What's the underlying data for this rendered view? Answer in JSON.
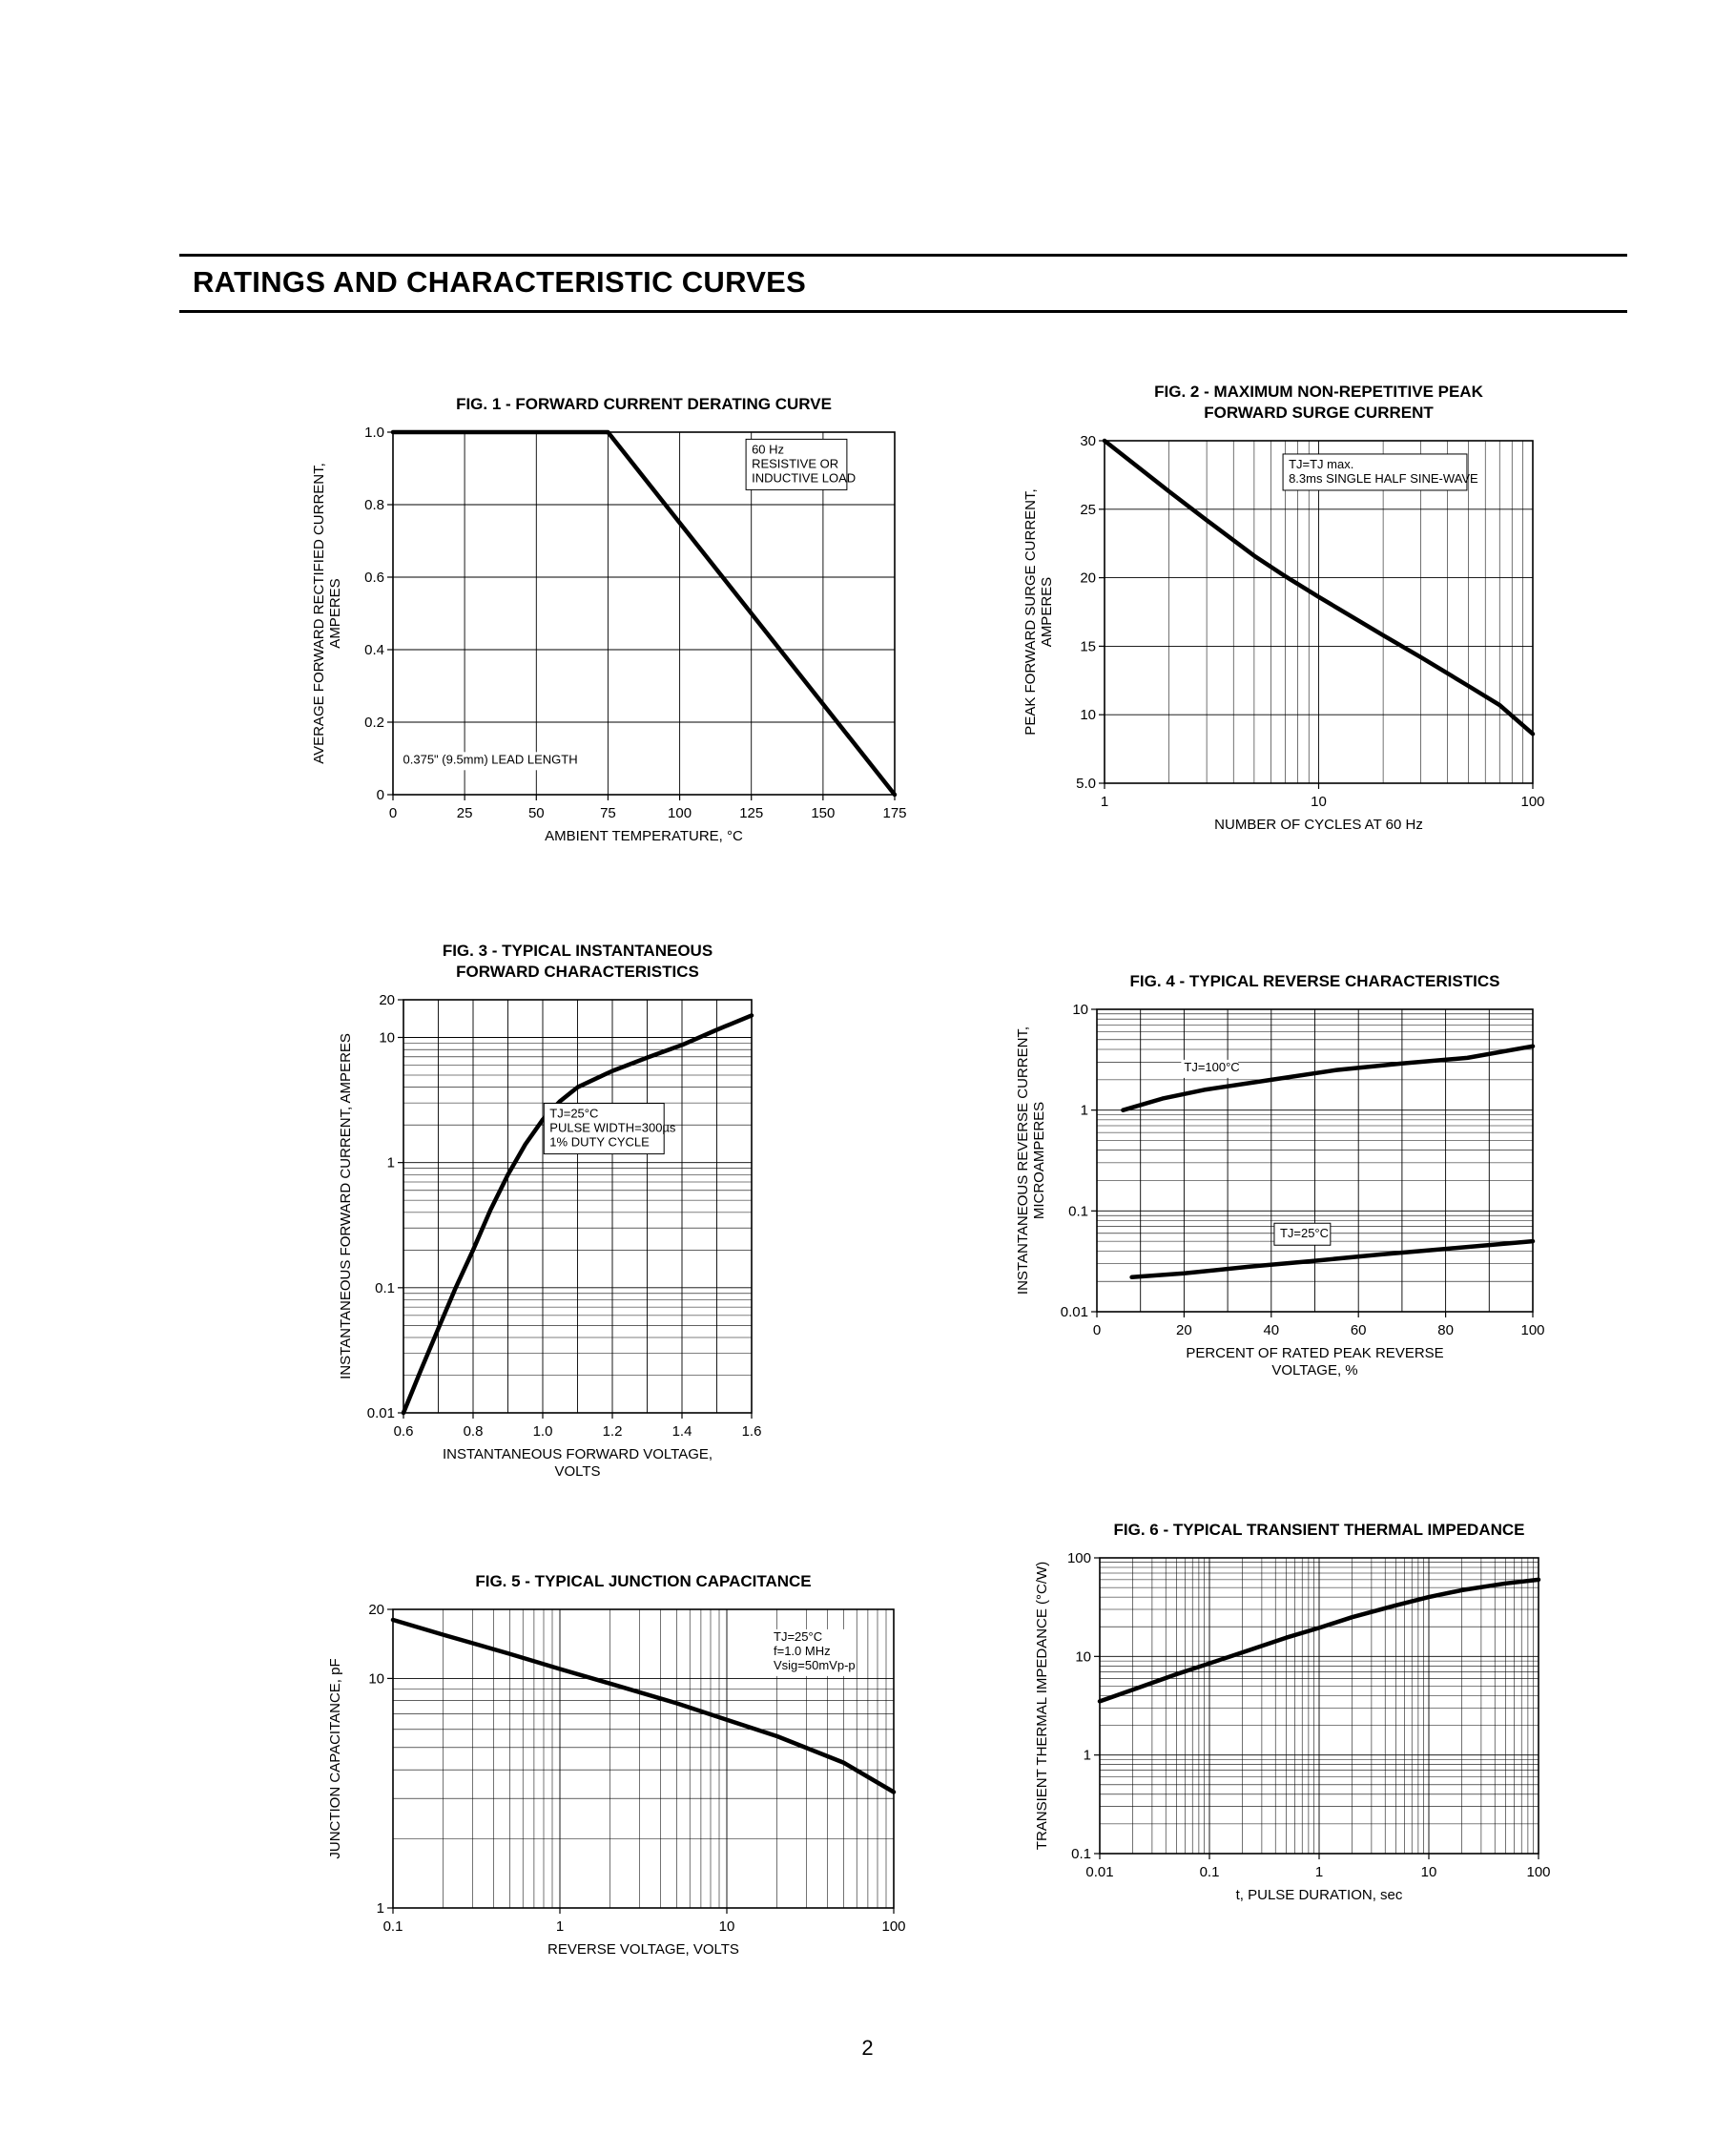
{
  "page": {
    "section_title": "RATINGS AND CHARACTERISTIC CURVES",
    "page_number": "2"
  },
  "chart_data": [
    {
      "id": "fig1",
      "type": "line",
      "title": "FIG. 1 - FORWARD CURRENT DERATING CURVE",
      "x": {
        "type": "linear",
        "min": 0,
        "max": 175,
        "step": 25,
        "ticks": [
          {
            "v": 0,
            "t": "0"
          },
          {
            "v": 25,
            "t": "25"
          },
          {
            "v": 50,
            "t": "50"
          },
          {
            "v": 75,
            "t": "75"
          },
          {
            "v": 100,
            "t": "100"
          },
          {
            "v": 125,
            "t": "125"
          },
          {
            "v": 150,
            "t": "150"
          },
          {
            "v": 175,
            "t": "175"
          }
        ],
        "label_lines": [
          "AMBIENT TEMPERATURE, °C"
        ]
      },
      "y": {
        "type": "linear",
        "min": 0,
        "max": 1.0,
        "step": 0.2,
        "ticks": [
          {
            "v": 0,
            "t": "0"
          },
          {
            "v": 0.2,
            "t": "0.2"
          },
          {
            "v": 0.4,
            "t": "0.4"
          },
          {
            "v": 0.6,
            "t": "0.6"
          },
          {
            "v": 0.8,
            "t": "0.8"
          },
          {
            "v": 1.0,
            "t": "1.0"
          }
        ],
        "label_lines": [
          "AVERAGE FORWARD RECTIFIED CURRENT,",
          "AMPERES"
        ]
      },
      "series": [
        {
          "name": "derating-curve",
          "points": [
            [
              0,
              1.0
            ],
            [
              75,
              1.0
            ],
            [
              175,
              0
            ]
          ]
        }
      ],
      "annotations": [
        {
          "lines": [
            "60 Hz",
            "RESISTIVE OR",
            "INDUCTIVE LOAD"
          ],
          "x": 0.715,
          "y": 0.03,
          "boxed": true
        },
        {
          "lines": [
            "0.375\" (9.5mm) LEAD LENGTH"
          ],
          "x": 0.02,
          "y": 0.885,
          "bg": true
        }
      ]
    },
    {
      "id": "fig2",
      "type": "line",
      "title": "FIG. 2 - MAXIMUM NON-REPETITIVE PEAK\nFORWARD SURGE CURRENT",
      "x": {
        "type": "log",
        "min": 1,
        "max": 100,
        "ticks": [
          {
            "v": 1,
            "t": "1"
          },
          {
            "v": 10,
            "t": "10"
          },
          {
            "v": 100,
            "t": "100"
          }
        ],
        "label_lines": [
          "NUMBER OF CYCLES AT 60 Hz"
        ]
      },
      "y": {
        "type": "linear",
        "min": 5,
        "max": 30,
        "step": 5,
        "ticks": [
          {
            "v": 5,
            "t": "5.0"
          },
          {
            "v": 10,
            "t": "10"
          },
          {
            "v": 15,
            "t": "15"
          },
          {
            "v": 20,
            "t": "20"
          },
          {
            "v": 25,
            "t": "25"
          },
          {
            "v": 30,
            "t": "30"
          }
        ],
        "label_lines": [
          "PEAK FORWARD SURGE CURRENT,",
          "AMPERES"
        ]
      },
      "series": [
        {
          "name": "surge-current",
          "points": [
            [
              1,
              30
            ],
            [
              2,
              26.3
            ],
            [
              3,
              24.2
            ],
            [
              5,
              21.6
            ],
            [
              7,
              20.1
            ],
            [
              10,
              18.6
            ],
            [
              20,
              15.8
            ],
            [
              30,
              14.2
            ],
            [
              50,
              12.1
            ],
            [
              70,
              10.7
            ],
            [
              100,
              8.6
            ]
          ]
        }
      ],
      "annotations": [
        {
          "lines": [
            "TJ=TJ max.",
            "8.3ms SINGLE HALF SINE-WAVE"
          ],
          "x": 0.43,
          "y": 0.05,
          "boxed": true
        }
      ]
    },
    {
      "id": "fig3",
      "type": "line",
      "title": "FIG. 3 - TYPICAL INSTANTANEOUS\nFORWARD CHARACTERISTICS",
      "x": {
        "type": "linear",
        "min": 0.6,
        "max": 1.6,
        "step": 0.1,
        "ticks": [
          {
            "v": 0.6,
            "t": "0.6"
          },
          {
            "v": 0.8,
            "t": "0.8"
          },
          {
            "v": 1.0,
            "t": "1.0"
          },
          {
            "v": 1.2,
            "t": "1.2"
          },
          {
            "v": 1.4,
            "t": "1.4"
          },
          {
            "v": 1.6,
            "t": "1.6"
          }
        ],
        "label_lines": [
          "INSTANTANEOUS FORWARD VOLTAGE,",
          "VOLTS"
        ]
      },
      "y": {
        "type": "log",
        "min": 0.01,
        "max": 20,
        "ticks": [
          {
            "v": 0.01,
            "t": "0.01"
          },
          {
            "v": 0.1,
            "t": "0.1"
          },
          {
            "v": 1,
            "t": "1"
          },
          {
            "v": 10,
            "t": "10"
          },
          {
            "v": 20,
            "t": "20"
          }
        ],
        "label_lines": [
          "INSTANTANEOUS FORWARD CURRENT, AMPERES"
        ]
      },
      "series": [
        {
          "name": "forward-characteristic",
          "points": [
            [
              0.6,
              0.01
            ],
            [
              0.65,
              0.022
            ],
            [
              0.7,
              0.047
            ],
            [
              0.75,
              0.1
            ],
            [
              0.8,
              0.2
            ],
            [
              0.85,
              0.42
            ],
            [
              0.9,
              0.8
            ],
            [
              0.95,
              1.4
            ],
            [
              1.0,
              2.2
            ],
            [
              1.05,
              3.1
            ],
            [
              1.1,
              4.0
            ],
            [
              1.2,
              5.4
            ],
            [
              1.3,
              6.9
            ],
            [
              1.4,
              8.7
            ],
            [
              1.5,
              11.5
            ],
            [
              1.6,
              15
            ]
          ]
        }
      ],
      "annotations": [
        {
          "lines": [
            "TJ=25°C",
            "PULSE WIDTH=300µs",
            "1% DUTY CYCLE"
          ],
          "x": 0.42,
          "y": 0.26,
          "boxed": true
        }
      ]
    },
    {
      "id": "fig4",
      "type": "line",
      "title": "FIG. 4 - TYPICAL REVERSE CHARACTERISTICS",
      "x": {
        "type": "linear",
        "min": 0,
        "max": 100,
        "step": 10,
        "ticks": [
          {
            "v": 0,
            "t": "0"
          },
          {
            "v": 20,
            "t": "20"
          },
          {
            "v": 40,
            "t": "40"
          },
          {
            "v": 60,
            "t": "60"
          },
          {
            "v": 80,
            "t": "80"
          },
          {
            "v": 100,
            "t": "100"
          }
        ],
        "label_lines": [
          "PERCENT OF RATED PEAK REVERSE",
          "VOLTAGE, %"
        ]
      },
      "y": {
        "type": "log",
        "min": 0.01,
        "max": 10,
        "ticks": [
          {
            "v": 0.01,
            "t": "0.01"
          },
          {
            "v": 0.1,
            "t": "0.1"
          },
          {
            "v": 1,
            "t": "1"
          },
          {
            "v": 10,
            "t": "10"
          }
        ],
        "label_lines": [
          "INSTANTANEOUS REVERSE CURRENT,",
          "MICROAMPERES"
        ]
      },
      "series": [
        {
          "name": "tj-100c",
          "points": [
            [
              6,
              1.0
            ],
            [
              15,
              1.3
            ],
            [
              25,
              1.6
            ],
            [
              40,
              2.0
            ],
            [
              55,
              2.5
            ],
            [
              70,
              2.9
            ],
            [
              85,
              3.3
            ],
            [
              100,
              4.3
            ]
          ]
        },
        {
          "name": "tj-25c",
          "points": [
            [
              8,
              0.022
            ],
            [
              20,
              0.024
            ],
            [
              35,
              0.028
            ],
            [
              50,
              0.032
            ],
            [
              65,
              0.037
            ],
            [
              80,
              0.042
            ],
            [
              100,
              0.05
            ]
          ]
        }
      ],
      "annotations": [
        {
          "lines": [
            "TJ=100°C"
          ],
          "x": 0.2,
          "y": 0.17,
          "bg": true
        },
        {
          "lines": [
            "TJ=25°C"
          ],
          "x": 0.42,
          "y": 0.72,
          "boxed": true
        }
      ]
    },
    {
      "id": "fig5",
      "type": "line",
      "title": "FIG. 5 - TYPICAL JUNCTION CAPACITANCE",
      "x": {
        "type": "log",
        "min": 0.1,
        "max": 100,
        "ticks": [
          {
            "v": 0.1,
            "t": "0.1"
          },
          {
            "v": 1,
            "t": "1"
          },
          {
            "v": 10,
            "t": "10"
          },
          {
            "v": 100,
            "t": "100"
          }
        ],
        "label_lines": [
          "REVERSE VOLTAGE, VOLTS"
        ]
      },
      "y": {
        "type": "log",
        "min": 1,
        "max": 20,
        "ticks": [
          {
            "v": 1,
            "t": "1"
          },
          {
            "v": 10,
            "t": "10"
          },
          {
            "v": 20,
            "t": "20"
          }
        ],
        "label_lines": [
          "JUNCTION CAPACITANCE, pF"
        ]
      },
      "series": [
        {
          "name": "junction-capacitance",
          "points": [
            [
              0.1,
              18
            ],
            [
              0.2,
              15.5
            ],
            [
              0.5,
              12.8
            ],
            [
              1,
              11
            ],
            [
              2,
              9.5
            ],
            [
              5,
              7.8
            ],
            [
              10,
              6.6
            ],
            [
              20,
              5.6
            ],
            [
              50,
              4.3
            ],
            [
              100,
              3.2
            ]
          ]
        }
      ],
      "annotations": [
        {
          "lines": [
            "TJ=25°C",
            "f=1.0 MHz",
            "Vsig=50mVp-p"
          ],
          "x": 0.76,
          "y": 0.07,
          "bg": true
        }
      ]
    },
    {
      "id": "fig6",
      "type": "line",
      "title": "FIG. 6 - TYPICAL TRANSIENT THERMAL IMPEDANCE",
      "x": {
        "type": "log",
        "min": 0.01,
        "max": 100,
        "ticks": [
          {
            "v": 0.01,
            "t": "0.01"
          },
          {
            "v": 0.1,
            "t": "0.1"
          },
          {
            "v": 1,
            "t": "1"
          },
          {
            "v": 10,
            "t": "10"
          },
          {
            "v": 100,
            "t": "100"
          }
        ],
        "label_lines": [
          "t, PULSE DURATION, sec"
        ]
      },
      "y": {
        "type": "log",
        "min": 0.1,
        "max": 100,
        "ticks": [
          {
            "v": 0.1,
            "t": "0.1"
          },
          {
            "v": 1,
            "t": "1"
          },
          {
            "v": 10,
            "t": "10"
          },
          {
            "v": 100,
            "t": "100"
          }
        ],
        "label_lines": [
          "TRANSIENT THERMAL IMPEDANCE (°C/W)"
        ]
      },
      "series": [
        {
          "name": "thermal-impedance",
          "points": [
            [
              0.01,
              3.5
            ],
            [
              0.02,
              4.6
            ],
            [
              0.05,
              6.6
            ],
            [
              0.1,
              8.5
            ],
            [
              0.2,
              11
            ],
            [
              0.5,
              15.5
            ],
            [
              1,
              19.5
            ],
            [
              2,
              25
            ],
            [
              5,
              33
            ],
            [
              10,
              40
            ],
            [
              20,
              47
            ],
            [
              50,
              55
            ],
            [
              100,
              60
            ]
          ]
        }
      ],
      "annotations": []
    }
  ]
}
